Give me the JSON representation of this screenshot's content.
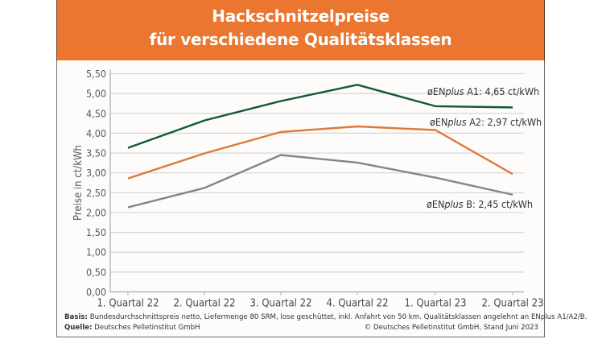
{
  "title_line1": "Hackschnitzelpreise",
  "title_line2": "für verschiedene Qualitätsklassen",
  "colors": {
    "header": "#ea7630",
    "A1": "#0f5a35",
    "A2": "#e07838",
    "B": "#858585"
  },
  "footer": {
    "basis_label": "Basis:",
    "basis_text": "Bundesdurchschnittspreis netto, Liefermenge 80 SRM, lose geschüttet, inkl. Anfahrt von 50 km. Qualitätsklassen angelehnt an ENplus A1/A2/B.",
    "source_label": "Quelle:",
    "source_text": "Deutsches Pelletinstitut GmbH",
    "copyright": "© Deutsches Pelletinstitut GmbH, Stand Juni 2023"
  },
  "chart_data": {
    "type": "line",
    "title": "Hackschnitzelpreise für verschiedene Qualitätsklassen",
    "xlabel": "",
    "ylabel": "Preise in ct/kWh",
    "ylim": [
      0,
      5.5
    ],
    "yticks": [
      "0,00",
      "0,50",
      "1,00",
      "1,50",
      "2,00",
      "2,50",
      "3,00",
      "3,50",
      "4,00",
      "4,50",
      "5,00",
      "5,50"
    ],
    "grid": true,
    "categories": [
      "1. Quartal 22",
      "2. Quartal 22",
      "3. Quartal 22",
      "4. Quartal 22",
      "1. Quartal 23",
      "2. Quartal 23"
    ],
    "series": [
      {
        "name": "ENplus A1",
        "label": "øENplus A1: 4,65 ct/kWh",
        "color": "#0f5a35",
        "values": [
          3.63,
          4.32,
          4.81,
          5.22,
          4.68,
          4.65
        ]
      },
      {
        "name": "ENplus A2",
        "label": "øENplus A2: 2,97 ct/kWh",
        "color": "#e07838",
        "values": [
          2.86,
          3.49,
          4.03,
          4.17,
          4.08,
          2.97
        ]
      },
      {
        "name": "ENplus B",
        "label": "øENplus B: 2,45 ct/kWh",
        "color": "#858585",
        "values": [
          2.13,
          2.62,
          3.45,
          3.26,
          2.88,
          2.45
        ]
      }
    ],
    "legend_position": "inline-right"
  }
}
